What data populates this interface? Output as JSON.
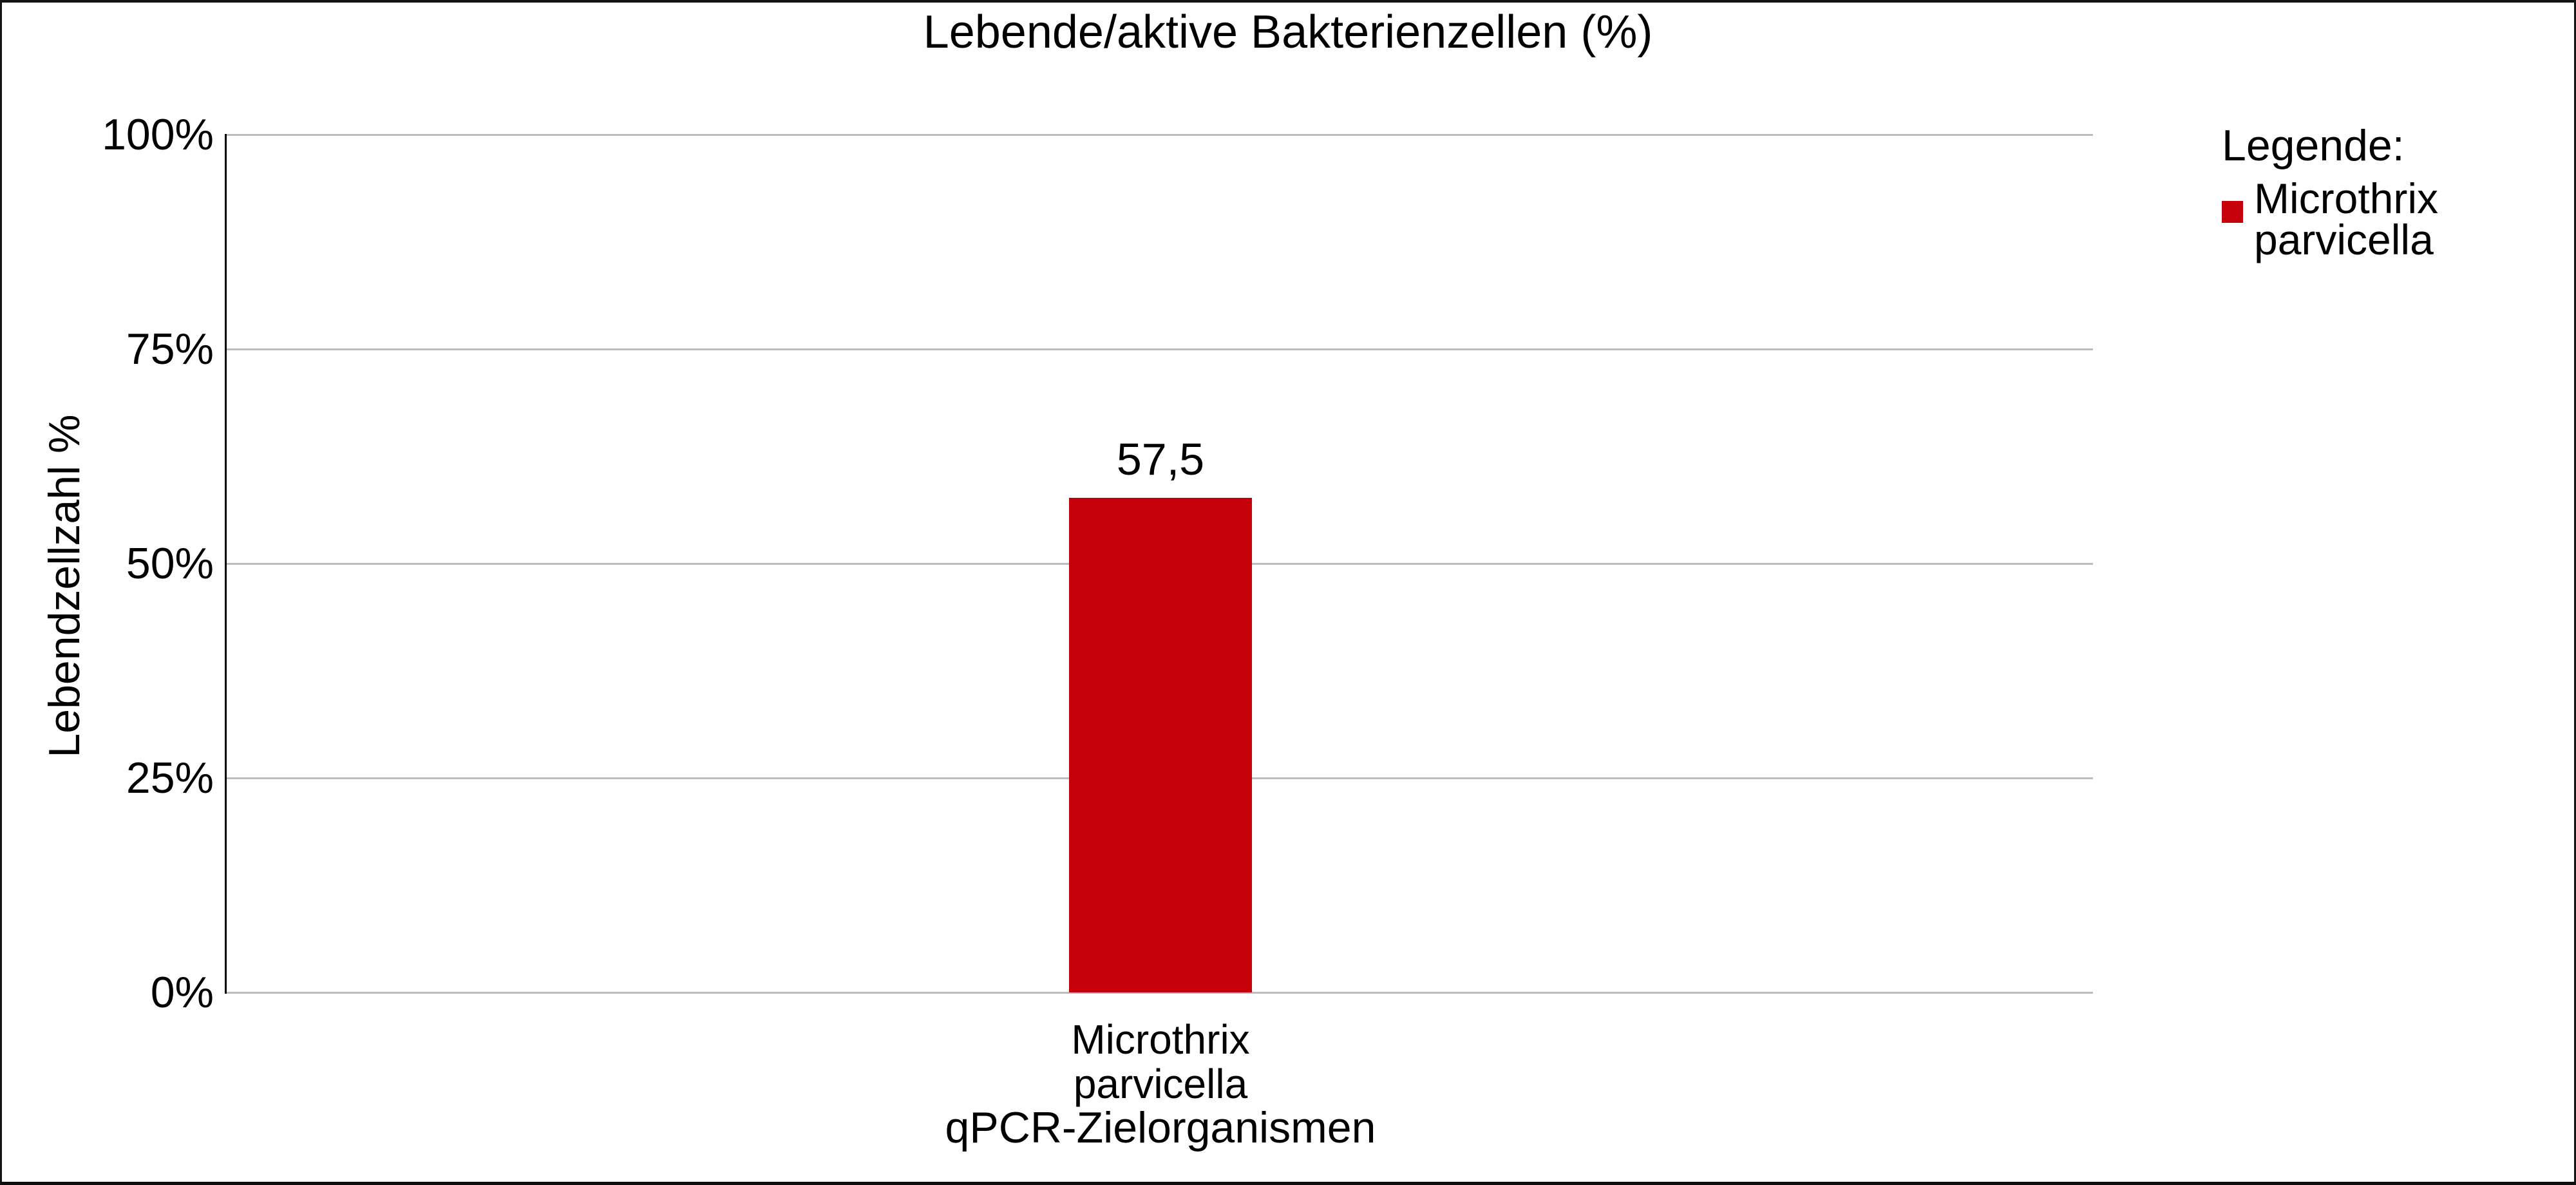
{
  "title": "Lebende/aktive Bakterienzellen (%)",
  "y_axis": {
    "label": "Lebendzellzahl %",
    "ticks": [
      "100%",
      "75%",
      "50%",
      "25%",
      "0%"
    ]
  },
  "x_axis": {
    "label": "qPCR-Zielorganismen",
    "category_line1": "Microthrix",
    "category_line2": "parvicella"
  },
  "bar": {
    "value_label": "57,5",
    "color": "#c5000b"
  },
  "legend": {
    "title": "Legende:",
    "item": {
      "line1": "Microthrix",
      "line2": "parvicella",
      "swatch_color": "#c5000b"
    }
  },
  "colors": {
    "bar_red": "#c5000b",
    "gridline": "#bdbdbd",
    "axis_line": "#000000",
    "text": "#000000",
    "background": "#ffffff",
    "frame_border": "#131313"
  },
  "chart_data": {
    "type": "bar",
    "title": "Lebende/aktive Bakterienzellen (%)",
    "categories": [
      "Microthrix parvicella"
    ],
    "series": [
      {
        "name": "Microthrix parvicella",
        "values": [
          57.5
        ],
        "color": "#c5000b"
      }
    ],
    "value_labels": [
      "57,5"
    ],
    "xlabel": "qPCR-Zielorganismen",
    "ylabel": "Lebendzellzahl %",
    "ylim": [
      0,
      100
    ],
    "ytick_interval": 25,
    "ytick_labels": [
      "0%",
      "25%",
      "50%",
      "75%",
      "100%"
    ],
    "grid": true,
    "legend_position": "right",
    "legend_title": "Legende:",
    "legend_entries": [
      "Microthrix parvicella"
    ]
  }
}
